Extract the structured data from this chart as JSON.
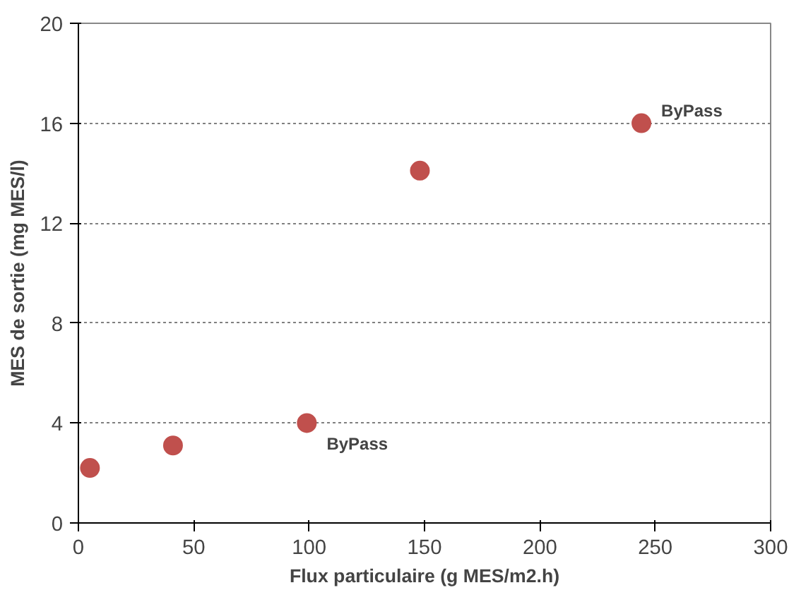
{
  "chart_data": {
    "type": "scatter",
    "xlabel": "Flux particulaire (g MES/m2.h)",
    "ylabel": "MES de sortie (mg MES/l)",
    "x": [
      5,
      41,
      99,
      148,
      244
    ],
    "series": [
      {
        "color": "#c0504d",
        "values": [
          2.2,
          3.1,
          4.0,
          14.1,
          16.0
        ]
      }
    ],
    "xlim": [
      0,
      300
    ],
    "xticks": [
      0,
      50,
      100,
      150,
      200,
      250,
      300
    ],
    "ylim": [
      0,
      20
    ],
    "yticks": [
      0,
      4,
      8,
      12,
      16,
      20
    ],
    "grid": "y",
    "marker": "circle",
    "annotations": [
      {
        "text": "ByPass",
        "x": 99,
        "y": 4.0
      },
      {
        "text": "ByPass",
        "x": 244,
        "y": 16.0
      }
    ]
  }
}
